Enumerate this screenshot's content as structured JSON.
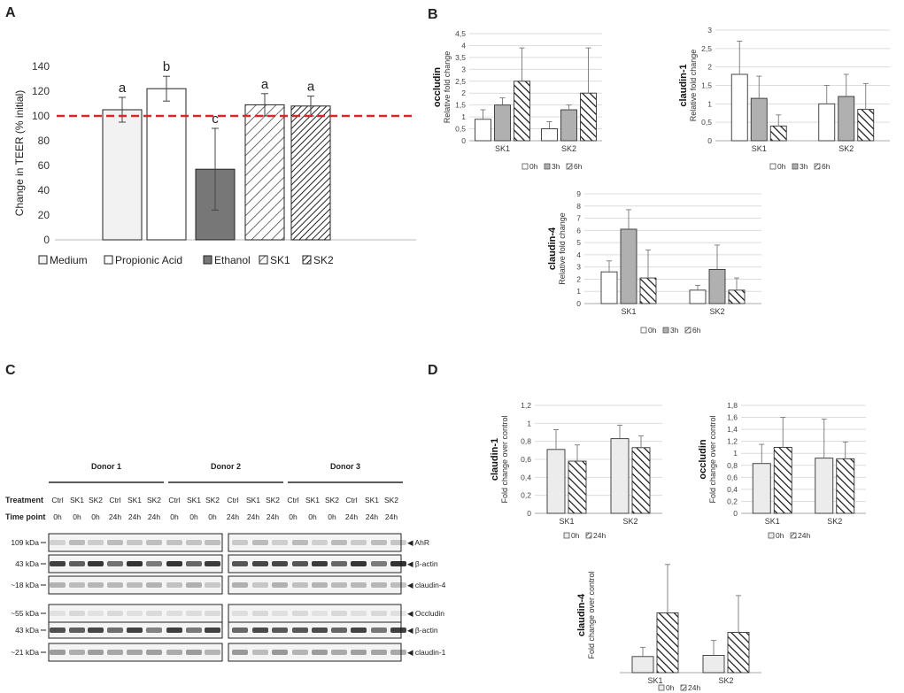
{
  "panel_labels": {
    "a": "A",
    "b": "B",
    "c": "C",
    "d": "D"
  },
  "chart_data": [
    {
      "id": "A",
      "type": "bar",
      "title": "",
      "ylabel": "Change in TEER (% initial)",
      "ylim": [
        0,
        140
      ],
      "yticks": [
        0,
        20,
        40,
        60,
        80,
        100,
        120,
        140
      ],
      "categories": [
        "Medium",
        "Propionic Acid",
        "Ethanol",
        "SK1",
        "SK2"
      ],
      "values": [
        105,
        122,
        57,
        109,
        108
      ],
      "errors": [
        10,
        10,
        33,
        9,
        8
      ],
      "letters": [
        "a",
        "b",
        "c",
        "a",
        "a"
      ],
      "patterns": [
        "light",
        "white",
        "dark",
        "hatch_sparse",
        "hatch_dense"
      ],
      "reference_line": 100,
      "legend": [
        "Medium",
        "Propionic Acid",
        "Ethanol",
        "SK1",
        "SK2"
      ]
    },
    {
      "id": "B1",
      "type": "bar",
      "title": "occludin",
      "ylabel": "Relative fold change",
      "ylim": [
        0,
        4.5
      ],
      "yticks": [
        "0",
        "0,5",
        "1",
        "1,5",
        "2",
        "2,5",
        "3",
        "3,5",
        "4",
        "4,5"
      ],
      "categories": [
        "SK1",
        "SK2"
      ],
      "series": [
        {
          "name": "0h",
          "values": [
            0.9,
            0.5
          ],
          "errors": [
            0.4,
            0.3
          ]
        },
        {
          "name": "3h",
          "values": [
            1.5,
            1.3
          ],
          "errors": [
            0.3,
            0.2
          ]
        },
        {
          "name": "6h",
          "values": [
            2.5,
            2.0
          ],
          "errors": [
            1.4,
            1.9
          ]
        }
      ]
    },
    {
      "id": "B2",
      "type": "bar",
      "title": "claudin-1",
      "ylabel": "Relative fold change",
      "ylim": [
        0,
        3
      ],
      "yticks": [
        "0",
        "0,5",
        "1",
        "1,5",
        "2",
        "2,5",
        "3"
      ],
      "categories": [
        "SK1",
        "SK2"
      ],
      "series": [
        {
          "name": "0h",
          "values": [
            1.8,
            1.0
          ],
          "errors": [
            0.9,
            0.5
          ]
        },
        {
          "name": "3h",
          "values": [
            1.15,
            1.2
          ],
          "errors": [
            0.6,
            0.6
          ]
        },
        {
          "name": "6h",
          "values": [
            0.4,
            0.85
          ],
          "errors": [
            0.3,
            0.7
          ]
        }
      ]
    },
    {
      "id": "B3",
      "type": "bar",
      "title": "claudin-4",
      "ylabel": "Relative fold change",
      "ylim": [
        0,
        9
      ],
      "yticks": [
        "0",
        "1",
        "2",
        "3",
        "4",
        "5",
        "6",
        "7",
        "8",
        "9"
      ],
      "categories": [
        "SK1",
        "SK2"
      ],
      "series": [
        {
          "name": "0h",
          "values": [
            2.6,
            1.1
          ],
          "errors": [
            0.9,
            0.4
          ]
        },
        {
          "name": "3h",
          "values": [
            6.1,
            2.8
          ],
          "errors": [
            1.6,
            2.0
          ]
        },
        {
          "name": "6h",
          "values": [
            2.1,
            1.1
          ],
          "errors": [
            2.3,
            1.0
          ]
        }
      ]
    },
    {
      "id": "D1",
      "type": "bar",
      "title": "claudin-1",
      "ylabel": "Fold change over control",
      "ylim": [
        0,
        1.2
      ],
      "yticks": [
        "0",
        "0,2",
        "0,4",
        "0,6",
        "0,8",
        "1",
        "1,2"
      ],
      "categories": [
        "SK1",
        "SK2"
      ],
      "series": [
        {
          "name": "0h",
          "values": [
            0.71,
            0.83
          ],
          "errors": [
            0.22,
            0.15
          ]
        },
        {
          "name": "24h",
          "values": [
            0.58,
            0.73
          ],
          "errors": [
            0.18,
            0.13
          ]
        }
      ]
    },
    {
      "id": "D2",
      "type": "bar",
      "title": "occludin",
      "ylabel": "Fold change over control",
      "ylim": [
        0,
        1.8
      ],
      "yticks": [
        "0",
        "0,2",
        "0,4",
        "0,6",
        "0,8",
        "1",
        "1,2",
        "1,4",
        "1,6",
        "1,8"
      ],
      "categories": [
        "SK1",
        "SK2"
      ],
      "series": [
        {
          "name": "0h",
          "values": [
            0.83,
            0.92
          ],
          "errors": [
            0.32,
            0.65
          ]
        },
        {
          "name": "24h",
          "values": [
            1.1,
            0.91
          ],
          "errors": [
            0.5,
            0.28
          ]
        }
      ]
    },
    {
      "id": "D3",
      "type": "bar",
      "title": "claudin-4",
      "ylabel": "Fold change over control",
      "ylim": [
        0,
        5
      ],
      "yticks": [],
      "categories": [
        "SK1",
        "SK2"
      ],
      "series": [
        {
          "name": "0h",
          "values": [
            0.7,
            0.75
          ],
          "errors": [
            0.4,
            0.65
          ]
        },
        {
          "name": "24h",
          "values": [
            2.6,
            1.75
          ],
          "errors": [
            2.1,
            1.6
          ]
        }
      ]
    }
  ],
  "blot": {
    "donors": [
      "Donor 1",
      "Donor 2",
      "Donor 3"
    ],
    "treatment_label": "Treatment",
    "timepoint_label": "Time point",
    "treatments": [
      "Ctrl",
      "SK1",
      "SK2",
      "Ctrl",
      "SK1",
      "SK2",
      "Ctrl",
      "SK1",
      "SK2",
      "Ctrl",
      "SK1",
      "SK2",
      "Ctrl",
      "SK1",
      "SK2",
      "Ctrl",
      "SK1",
      "SK2"
    ],
    "timepoints": [
      "0h",
      "0h",
      "0h",
      "24h",
      "24h",
      "24h",
      "0h",
      "0h",
      "0h",
      "24h",
      "24h",
      "24h",
      "0h",
      "0h",
      "0h",
      "24h",
      "24h",
      "24h"
    ],
    "rows": [
      {
        "kda": "109 kDa",
        "protein": "AhR",
        "intensity": 0.25
      },
      {
        "kda": "43 kDa",
        "protein": "β-actin",
        "intensity": 0.85
      },
      {
        "kda": "~18 kDa",
        "protein": "claudin-4",
        "intensity": 0.3
      },
      {
        "kda": "~55 kDa",
        "protein": "Occludin",
        "intensity": 0.12
      },
      {
        "kda": "43 kDa",
        "protein": "β-actin",
        "intensity": 0.8
      },
      {
        "kda": "~21 kDa",
        "protein": "claudin-1",
        "intensity": 0.4
      }
    ]
  }
}
